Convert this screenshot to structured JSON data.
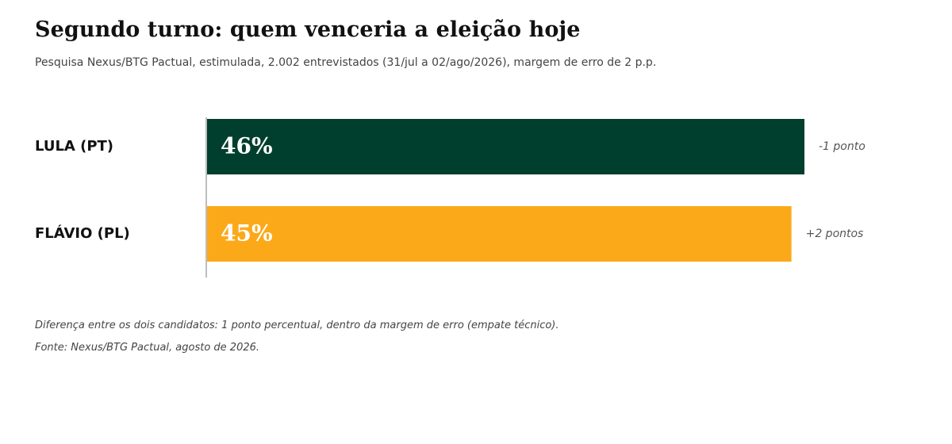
{
  "header": {
    "title": "Segundo turno: quem venceria a eleição hoje",
    "subtitle": "Pesquisa Nexus/BTG Pactual, estimulada, 2.002 entrevistados (31/jul a 02/ago/2026), margem de erro de 2 p.p."
  },
  "chart_data": {
    "type": "bar",
    "orientation": "horizontal",
    "categories": [
      "LULA (PT)",
      "FLÁVIO (PL)"
    ],
    "values": [
      46,
      45
    ],
    "value_labels": [
      "46%",
      "45%"
    ],
    "change_labels": [
      "-1 ponto",
      "+2 pontos"
    ],
    "colors": [
      "#003f2d",
      "#fca919"
    ],
    "unit": "%",
    "xlim": [
      0,
      46
    ],
    "grid": false,
    "legend": "none"
  },
  "footer": {
    "note": "Diferença entre os dois candidatos: 1 ponto percentual, dentro da margem de erro (empate técnico).",
    "source": "Fonte: Nexus/BTG Pactual, agosto de 2026."
  }
}
